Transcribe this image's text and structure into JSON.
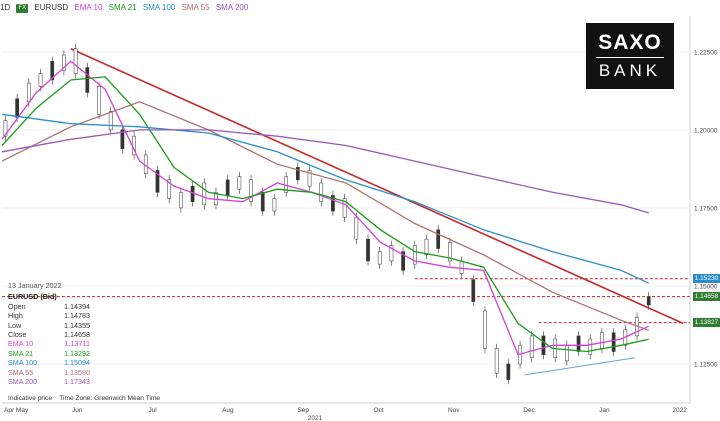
{
  "header": {
    "timeframe": "1D",
    "instrument_badge": "FX",
    "symbol": "EURUSD",
    "indicators": [
      {
        "label": "EMA 10",
        "color": "#d63fd6"
      },
      {
        "label": "SMA 21",
        "color": "#1a9e1a"
      },
      {
        "label": "SMA 100",
        "color": "#2a8fc8"
      },
      {
        "label": "SMA 55",
        "color": "#b07070"
      },
      {
        "label": "SMA 200",
        "color": "#9b59b6"
      }
    ]
  },
  "logo": {
    "line1": "SAXO",
    "line2": "BANK"
  },
  "legend": {
    "date": "13 January 2022",
    "title": "EURUSD (Bid)",
    "rows": [
      {
        "label": "Open",
        "value": "1.14394",
        "color": "#333333"
      },
      {
        "label": "High",
        "value": "1.14783",
        "color": "#333333"
      },
      {
        "label": "Low",
        "value": "1.14355",
        "color": "#333333"
      },
      {
        "label": "Close",
        "value": "1.14658",
        "color": "#333333"
      },
      {
        "label": "EMA 10",
        "value": "1.13711",
        "color": "#d63fd6"
      },
      {
        "label": "SMA 21",
        "value": "1.13292",
        "color": "#1a9e1a"
      },
      {
        "label": "SMA 100",
        "value": "1.15094",
        "color": "#2a8fc8"
      },
      {
        "label": "SMA 55",
        "value": "1.13580",
        "color": "#b07070"
      },
      {
        "label": "SMA 200",
        "value": "1.17343",
        "color": "#9b59b6"
      }
    ]
  },
  "footer": {
    "note": "Indicative price",
    "timezone": "Time Zone: Greenwich Mean Time"
  },
  "price_tags": [
    {
      "value": "1.15230",
      "color": "#2a8fc8"
    },
    {
      "value": "1.14658",
      "color": "#2e7d32"
    },
    {
      "value": "1.13827",
      "color": "#2e7d32"
    }
  ],
  "chart_data": {
    "type": "line",
    "y_ticks": [
      1.125,
      1.15,
      1.175,
      1.2,
      1.225
    ],
    "y_tick_labels": [
      "1.12500",
      "1.15000",
      "1.17500",
      "1.20000",
      "1.22500"
    ],
    "ylim": [
      1.1125,
      1.2365
    ],
    "x_ticks": [
      "Apr May",
      "Jun",
      "Jul",
      "Aug",
      "Sep",
      "Oct",
      "Nov",
      "Dec",
      "Jan",
      "2022"
    ],
    "x_sublabel": "2021",
    "series": [
      {
        "name": "EMA 10",
        "color": "#d63fd6",
        "x": [
          0,
          0.05,
          0.1,
          0.15,
          0.2,
          0.25,
          0.3,
          0.35,
          0.4,
          0.45,
          0.5,
          0.55,
          0.6,
          0.65,
          0.7,
          0.75,
          0.8,
          0.85,
          0.9,
          0.94
        ],
        "y": [
          1.197,
          1.212,
          1.222,
          1.213,
          1.19,
          1.182,
          1.178,
          1.177,
          1.183,
          1.18,
          1.176,
          1.164,
          1.158,
          1.156,
          1.155,
          1.128,
          1.131,
          1.131,
          1.133,
          1.1371
        ]
      },
      {
        "name": "SMA 21",
        "color": "#1a9e1a",
        "x": [
          0,
          0.05,
          0.1,
          0.15,
          0.2,
          0.25,
          0.3,
          0.35,
          0.4,
          0.45,
          0.5,
          0.55,
          0.6,
          0.65,
          0.7,
          0.75,
          0.8,
          0.85,
          0.9,
          0.94
        ],
        "y": [
          1.195,
          1.207,
          1.216,
          1.217,
          1.205,
          1.188,
          1.18,
          1.178,
          1.181,
          1.18,
          1.177,
          1.168,
          1.161,
          1.159,
          1.156,
          1.138,
          1.13,
          1.129,
          1.131,
          1.1329
        ]
      },
      {
        "name": "SMA 55",
        "color": "#b07070",
        "x": [
          0,
          0.1,
          0.2,
          0.3,
          0.4,
          0.5,
          0.6,
          0.7,
          0.8,
          0.9,
          0.94
        ],
        "y": [
          1.19,
          1.201,
          1.209,
          1.2,
          1.189,
          1.183,
          1.17,
          1.16,
          1.148,
          1.139,
          1.1358
        ]
      },
      {
        "name": "SMA 100",
        "color": "#2a8fc8",
        "x": [
          0,
          0.1,
          0.2,
          0.3,
          0.4,
          0.5,
          0.6,
          0.7,
          0.8,
          0.9,
          0.94
        ],
        "y": [
          1.205,
          1.202,
          1.201,
          1.199,
          1.193,
          1.184,
          1.177,
          1.168,
          1.161,
          1.155,
          1.1509
        ]
      },
      {
        "name": "SMA 200",
        "color": "#9b59b6",
        "x": [
          0,
          0.1,
          0.2,
          0.3,
          0.4,
          0.5,
          0.6,
          0.7,
          0.8,
          0.9,
          0.94
        ],
        "y": [
          1.193,
          1.197,
          1.2,
          1.2,
          1.198,
          1.195,
          1.19,
          1.185,
          1.18,
          1.176,
          1.1734
        ]
      }
    ],
    "candles": [
      [
        1.198,
        1.203
      ],
      [
        1.204,
        1.21
      ],
      [
        1.209,
        1.215
      ],
      [
        1.214,
        1.218
      ],
      [
        1.216,
        1.222
      ],
      [
        1.219,
        1.224
      ],
      [
        1.218,
        1.226
      ],
      [
        1.212,
        1.22
      ],
      [
        1.205,
        1.214
      ],
      [
        1.2,
        1.206
      ],
      [
        1.194,
        1.2
      ],
      [
        1.192,
        1.198
      ],
      [
        1.186,
        1.192
      ],
      [
        1.18,
        1.187
      ],
      [
        1.178,
        1.184
      ],
      [
        1.175,
        1.18
      ],
      [
        1.177,
        1.182
      ],
      [
        1.176,
        1.183
      ],
      [
        1.176,
        1.18
      ],
      [
        1.179,
        1.184
      ],
      [
        1.181,
        1.185
      ],
      [
        1.177,
        1.184
      ],
      [
        1.174,
        1.18
      ],
      [
        1.174,
        1.178
      ],
      [
        1.18,
        1.185
      ],
      [
        1.184,
        1.188
      ],
      [
        1.182,
        1.187
      ],
      [
        1.177,
        1.183
      ],
      [
        1.174,
        1.179
      ],
      [
        1.172,
        1.178
      ],
      [
        1.165,
        1.172
      ],
      [
        1.158,
        1.165
      ],
      [
        1.157,
        1.161
      ],
      [
        1.158,
        1.163
      ],
      [
        1.155,
        1.161
      ],
      [
        1.157,
        1.163
      ],
      [
        1.16,
        1.165
      ],
      [
        1.162,
        1.168
      ],
      [
        1.158,
        1.164
      ],
      [
        1.154,
        1.158
      ],
      [
        1.145,
        1.152
      ],
      [
        1.13,
        1.142
      ],
      [
        1.122,
        1.13
      ],
      [
        1.12,
        1.125
      ],
      [
        1.125,
        1.131
      ],
      [
        1.127,
        1.134
      ],
      [
        1.128,
        1.134
      ],
      [
        1.127,
        1.133
      ],
      [
        1.126,
        1.131
      ],
      [
        1.129,
        1.134
      ],
      [
        1.128,
        1.133
      ],
      [
        1.13,
        1.135
      ],
      [
        1.129,
        1.135
      ],
      [
        1.131,
        1.136
      ],
      [
        1.134,
        1.14
      ],
      [
        1.1439,
        1.1466
      ]
    ],
    "annotations": [
      {
        "type": "trendline",
        "color": "#c62828",
        "from": [
          0.1,
          1.226
        ],
        "to": [
          0.99,
          1.138
        ]
      },
      {
        "type": "support",
        "color": "#5fa8d3",
        "from": [
          0.76,
          1.1215
        ],
        "to": [
          0.92,
          1.127
        ]
      },
      {
        "type": "hline-dashed",
        "color": "#c62828",
        "y": 1.1523,
        "x_from": 0.6
      },
      {
        "type": "hline-dashed",
        "color": "#c62828",
        "y": 1.14658,
        "x_from": 0.0
      },
      {
        "type": "hline-dashed",
        "color": "#c62828",
        "y": 1.13827,
        "x_from": 0.78
      }
    ]
  }
}
